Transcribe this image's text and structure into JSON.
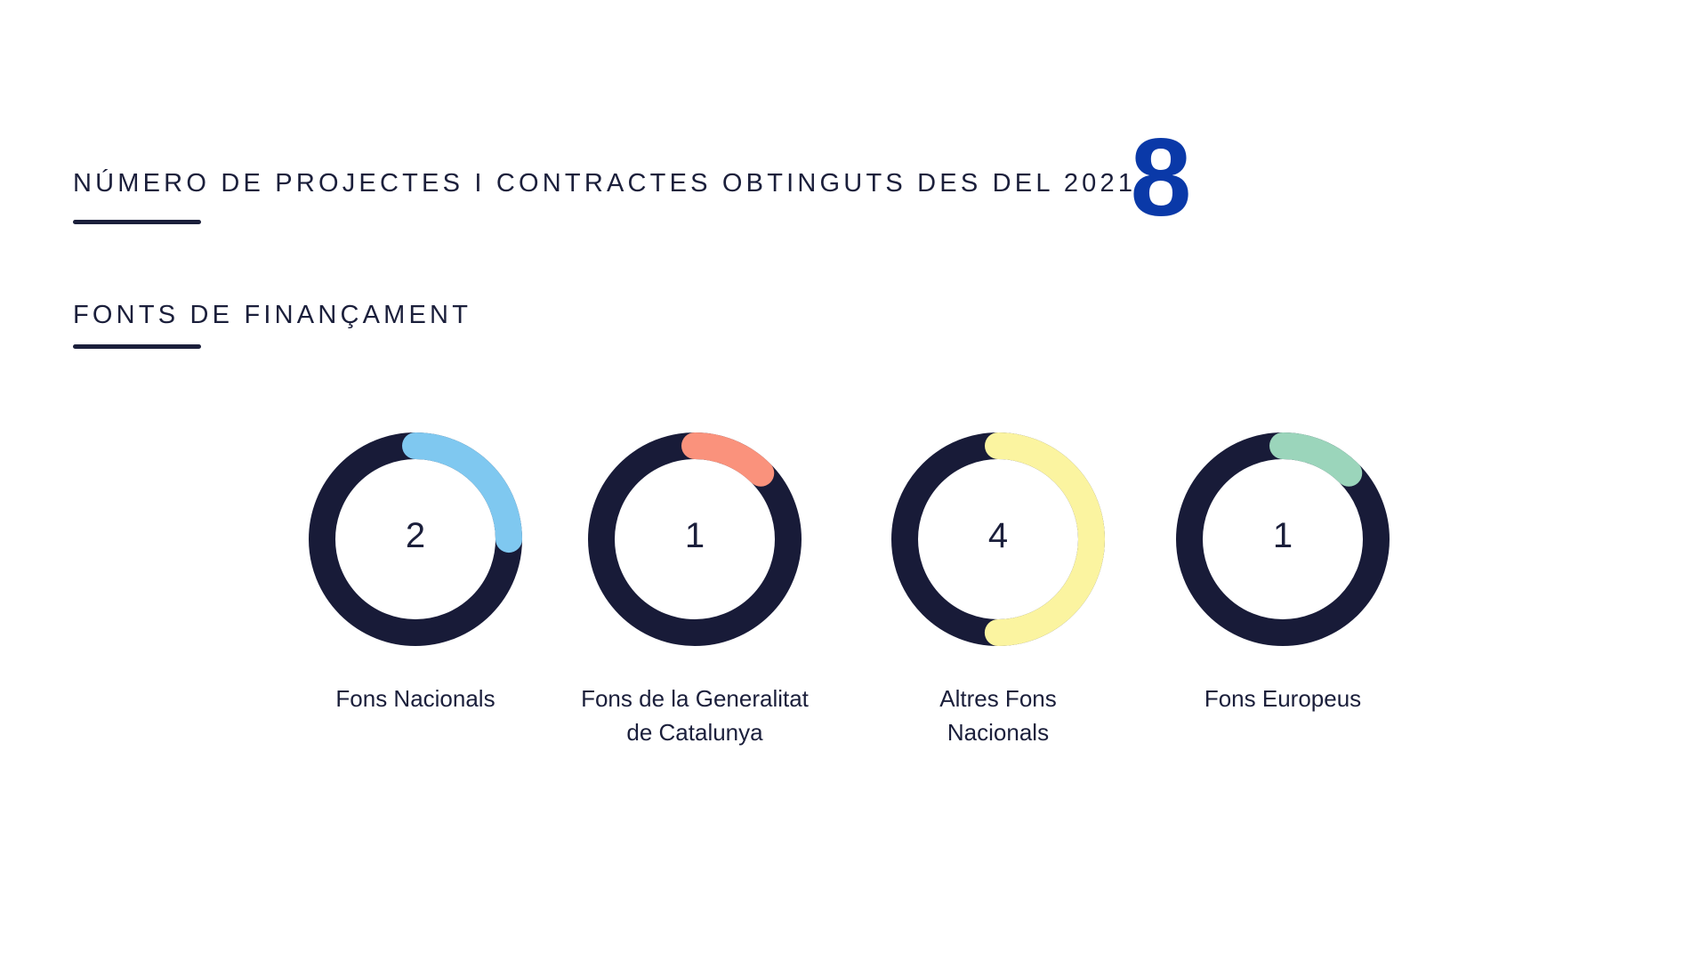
{
  "header": {
    "projects_title": "NÚMERO DE PROJECTES I CONTRACTES OBTINGUTS DES DEL 2021",
    "projects_total": "8",
    "funding_title": "FONTS DE FINANÇAMENT"
  },
  "colors": {
    "text": "#1b1f3b",
    "accent_total": "#0a39a8",
    "donut_track": "#181b38"
  },
  "chart_data": {
    "type": "pie",
    "variant": "donut",
    "total": 8,
    "categories": [
      "Fons Nacionals",
      "Fons de la Generalitat de Catalunya",
      "Altres Fons Nacionals",
      "Fons Europeus"
    ],
    "values": [
      2,
      1,
      4,
      1
    ],
    "colors": [
      "#7fc8f0",
      "#fa927c",
      "#fbf4a0",
      "#9bd5bb"
    ],
    "label_lines": [
      [
        "Fons Nacionals"
      ],
      [
        "Fons de la Generalitat",
        "de Catalunya"
      ],
      [
        "Altres Fons",
        "Nacionals"
      ],
      [
        "Fons Europeus"
      ]
    ]
  }
}
